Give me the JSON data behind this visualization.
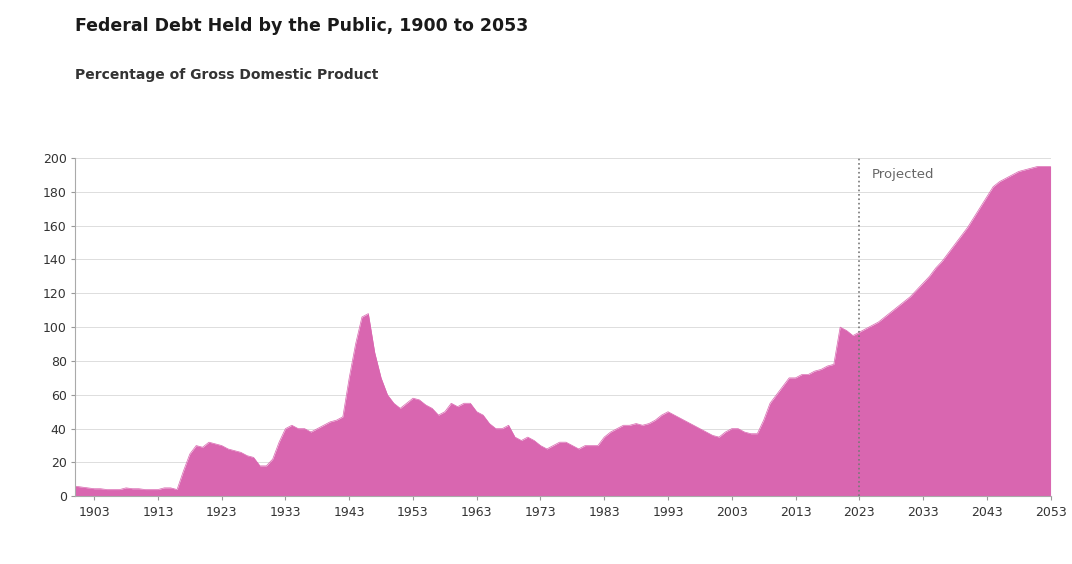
{
  "title": "Federal Debt Held by the Public, 1900 to 2053",
  "subtitle": "Percentage of Gross Domestic Product",
  "fill_color": "#d966b0",
  "fill_alpha": 1.0,
  "projected_line_year": 2023,
  "projected_label": "Projected",
  "background_color": "#ffffff",
  "xlim": [
    1900,
    2053
  ],
  "ylim": [
    0,
    200
  ],
  "yticks": [
    0,
    20,
    40,
    60,
    80,
    100,
    120,
    140,
    160,
    180,
    200
  ],
  "xticks": [
    1903,
    1913,
    1923,
    1933,
    1943,
    1953,
    1963,
    1973,
    1983,
    1993,
    2003,
    2013,
    2023,
    2033,
    2043,
    2053
  ],
  "years": [
    1900,
    1901,
    1902,
    1903,
    1904,
    1905,
    1906,
    1907,
    1908,
    1909,
    1910,
    1911,
    1912,
    1913,
    1914,
    1915,
    1916,
    1917,
    1918,
    1919,
    1920,
    1921,
    1922,
    1923,
    1924,
    1925,
    1926,
    1927,
    1928,
    1929,
    1930,
    1931,
    1932,
    1933,
    1934,
    1935,
    1936,
    1937,
    1938,
    1939,
    1940,
    1941,
    1942,
    1943,
    1944,
    1945,
    1946,
    1947,
    1948,
    1949,
    1950,
    1951,
    1952,
    1953,
    1954,
    1955,
    1956,
    1957,
    1958,
    1959,
    1960,
    1961,
    1962,
    1963,
    1964,
    1965,
    1966,
    1967,
    1968,
    1969,
    1970,
    1971,
    1972,
    1973,
    1974,
    1975,
    1976,
    1977,
    1978,
    1979,
    1980,
    1981,
    1982,
    1983,
    1984,
    1985,
    1986,
    1987,
    1988,
    1989,
    1990,
    1991,
    1992,
    1993,
    1994,
    1995,
    1996,
    1997,
    1998,
    1999,
    2000,
    2001,
    2002,
    2003,
    2004,
    2005,
    2006,
    2007,
    2008,
    2009,
    2010,
    2011,
    2012,
    2013,
    2014,
    2015,
    2016,
    2017,
    2018,
    2019,
    2020,
    2021,
    2022,
    2023,
    2024,
    2025,
    2026,
    2027,
    2028,
    2029,
    2030,
    2031,
    2032,
    2033,
    2034,
    2035,
    2036,
    2037,
    2038,
    2039,
    2040,
    2041,
    2042,
    2043,
    2044,
    2045,
    2046,
    2047,
    2048,
    2049,
    2050,
    2051,
    2052,
    2053
  ],
  "values": [
    6,
    5.5,
    5,
    4.5,
    4.5,
    4,
    4,
    4,
    5,
    4.5,
    4.5,
    4,
    4,
    4,
    5,
    5,
    4,
    15,
    25,
    30,
    29,
    32,
    31,
    30,
    28,
    27,
    26,
    24,
    23,
    18,
    18,
    22,
    32,
    40,
    42,
    40,
    40,
    38,
    40,
    42,
    44,
    45,
    47,
    70,
    90,
    106,
    108,
    85,
    70,
    60,
    55,
    52,
    55,
    58,
    57,
    54,
    52,
    48,
    50,
    55,
    53,
    55,
    55,
    50,
    48,
    43,
    40,
    40,
    42,
    35,
    33,
    35,
    33,
    30,
    28,
    30,
    32,
    32,
    30,
    28,
    30,
    30,
    30,
    35,
    38,
    40,
    42,
    42,
    43,
    42,
    43,
    45,
    48,
    50,
    48,
    46,
    44,
    42,
    40,
    38,
    36,
    35,
    38,
    40,
    40,
    38,
    37,
    37,
    45,
    55,
    60,
    65,
    70,
    70,
    72,
    72,
    74,
    75,
    77,
    78,
    100,
    98,
    95,
    97,
    99,
    101,
    103,
    106,
    109,
    112,
    115,
    118,
    122,
    126,
    130,
    135,
    139,
    144,
    149,
    154,
    159,
    165,
    171,
    177,
    183,
    186,
    188,
    190,
    192,
    193,
    194,
    195,
    195,
    195
  ]
}
